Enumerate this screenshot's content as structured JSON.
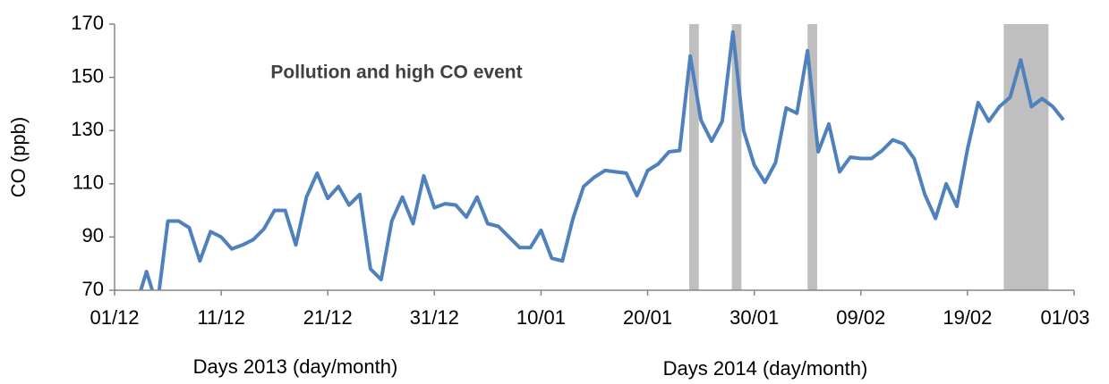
{
  "chart_data": {
    "type": "line",
    "y_label": "CO (ppb)",
    "x_labels": [
      "Days 2013 (day/month)",
      "Days 2014 (day/month)"
    ],
    "annotation": "Pollution and high CO event",
    "color": "#4f81bd",
    "shade_color": "#bfbfbf",
    "shaded_periods": [
      [
        53.9,
        54.8
      ],
      [
        57.9,
        58.8
      ],
      [
        65,
        65.9
      ],
      [
        83.4,
        87.6
      ]
    ],
    "x": [
      0,
      1,
      2,
      3,
      4,
      5,
      6,
      7,
      8,
      9,
      10,
      11,
      12,
      13,
      14,
      15,
      16,
      17,
      18,
      19,
      20,
      21,
      22,
      23,
      24,
      25,
      26,
      27,
      28,
      29,
      30,
      31,
      32,
      33,
      34,
      35,
      36,
      37,
      38,
      39,
      40,
      41,
      42,
      43,
      44,
      45,
      46,
      47,
      48,
      49,
      50,
      51,
      52,
      53,
      54,
      55,
      56,
      57,
      58,
      59,
      60,
      61,
      62,
      63,
      64,
      65,
      66,
      67,
      68,
      69,
      70,
      71,
      72,
      73,
      74,
      75,
      76,
      77,
      78,
      79,
      80,
      81,
      82,
      83,
      84,
      85,
      86,
      87,
      88,
      89
    ],
    "values": [
      70,
      66,
      64,
      77,
      64,
      96,
      96,
      93.5,
      81,
      92,
      90,
      85.5,
      87,
      89,
      93,
      100,
      100,
      87,
      105,
      114,
      104.5,
      109,
      102,
      106,
      78,
      74,
      96,
      105,
      95,
      113,
      101,
      102.5,
      102,
      97.5,
      105,
      95,
      94,
      90,
      86,
      86,
      92.5,
      82,
      81,
      97,
      109,
      112.5,
      115,
      114.5,
      114,
      105.5,
      115,
      117.5,
      122,
      122.5,
      158,
      134,
      126,
      133.5,
      167,
      130,
      117,
      110.5,
      118,
      138.5,
      136.5,
      160,
      122,
      132.5,
      114.5,
      120,
      119.5,
      119.5,
      122.5,
      126.5,
      125,
      119.5,
      106,
      97,
      110,
      101.5,
      123,
      140.5,
      133.5,
      139,
      142.5,
      156.5,
      139,
      142,
      139,
      134
    ],
    "xlim": [
      0,
      90
    ],
    "xticks": [
      {
        "value": 0,
        "label": "01/12"
      },
      {
        "value": 10,
        "label": "11/12"
      },
      {
        "value": 20,
        "label": "21/12"
      },
      {
        "value": 30,
        "label": "31/12"
      },
      {
        "value": 40,
        "label": "10/01"
      },
      {
        "value": 50,
        "label": "20/01"
      },
      {
        "value": 60,
        "label": "30/01"
      },
      {
        "value": 70,
        "label": "09/02"
      },
      {
        "value": 80,
        "label": "19/02"
      },
      {
        "value": 90,
        "label": "01/03"
      }
    ],
    "ylim": [
      70,
      170
    ],
    "yticks": [
      70,
      90,
      110,
      130,
      150,
      170
    ],
    "grid": false
  }
}
